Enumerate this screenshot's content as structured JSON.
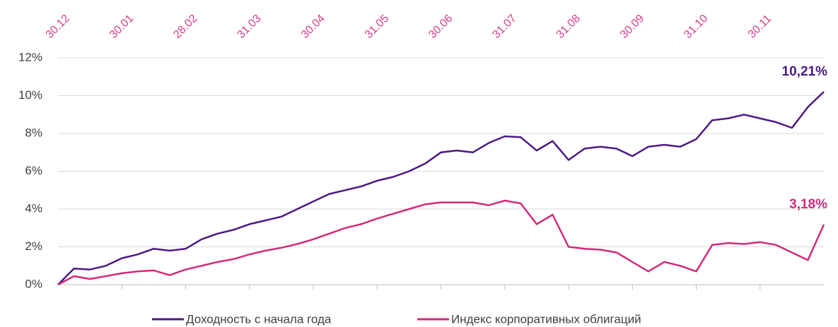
{
  "chart_data": {
    "type": "line",
    "categories": [
      "30.12",
      null,
      null,
      null,
      "30.01",
      null,
      null,
      null,
      "28.02",
      null,
      null,
      null,
      "31.03",
      null,
      null,
      null,
      "30.04",
      null,
      null,
      null,
      "31.05",
      null,
      null,
      null,
      "30.06",
      null,
      null,
      null,
      "31.07",
      null,
      null,
      null,
      "31.08",
      null,
      null,
      null,
      "30.09",
      null,
      null,
      null,
      "31.10",
      null,
      null,
      null,
      "30.11",
      null,
      null,
      null,
      null
    ],
    "series": [
      {
        "name": "Доходность с начала года",
        "color": "#4b1a84",
        "values": [
          0,
          0.85,
          0.8,
          1.0,
          1.4,
          1.6,
          1.9,
          1.8,
          1.9,
          2.4,
          2.7,
          2.9,
          3.2,
          3.4,
          3.6,
          4.0,
          4.4,
          4.8,
          5.0,
          5.2,
          5.5,
          5.7,
          6.0,
          6.4,
          7.0,
          7.1,
          7.0,
          7.5,
          7.85,
          7.8,
          7.1,
          7.6,
          6.6,
          7.2,
          7.3,
          7.2,
          6.8,
          7.3,
          7.4,
          7.3,
          7.7,
          8.7,
          8.8,
          9.0,
          8.8,
          8.6,
          8.3,
          9.4,
          10.21
        ],
        "value_labels": [
          null,
          null,
          null,
          null,
          null,
          null,
          null,
          null,
          null,
          null,
          null,
          null,
          null,
          null,
          null,
          null,
          null,
          null,
          null,
          null,
          null,
          null,
          null,
          null,
          null,
          null,
          null,
          null,
          null,
          null,
          null,
          null,
          null,
          null,
          null,
          null,
          null,
          null,
          null,
          null,
          null,
          null,
          null,
          null,
          null,
          null,
          null,
          null,
          "10,21%"
        ]
      },
      {
        "name": "Индекс корпоративных облигаций",
        "color": "#d12b7c",
        "values": [
          0,
          0.45,
          0.3,
          0.45,
          0.6,
          0.7,
          0.75,
          0.5,
          0.8,
          1.0,
          1.2,
          1.35,
          1.6,
          1.8,
          1.95,
          2.15,
          2.4,
          2.7,
          3.0,
          3.2,
          3.5,
          3.75,
          4.0,
          4.25,
          4.35,
          4.35,
          4.35,
          4.2,
          4.45,
          4.3,
          3.2,
          3.7,
          2.0,
          1.9,
          1.85,
          1.7,
          1.2,
          0.7,
          1.2,
          1.0,
          0.7,
          2.1,
          2.2,
          2.15,
          2.25,
          2.1,
          1.7,
          1.3,
          3.18
        ],
        "value_labels": [
          null,
          null,
          null,
          null,
          null,
          null,
          null,
          null,
          null,
          null,
          null,
          null,
          null,
          null,
          null,
          null,
          null,
          null,
          null,
          null,
          null,
          null,
          null,
          null,
          null,
          null,
          null,
          null,
          null,
          null,
          null,
          null,
          null,
          null,
          null,
          null,
          null,
          null,
          null,
          null,
          null,
          null,
          null,
          null,
          null,
          null,
          null,
          null,
          "3,18%"
        ]
      }
    ],
    "ylim": [
      0,
      12
    ],
    "yticks": [
      {
        "value": 0,
        "label": "0%"
      },
      {
        "value": 2,
        "label": "2%"
      },
      {
        "value": 4,
        "label": "4%"
      },
      {
        "value": 6,
        "label": "6%"
      },
      {
        "value": 8,
        "label": "8%"
      },
      {
        "value": 10,
        "label": "10%"
      },
      {
        "value": 12,
        "label": "12%"
      }
    ],
    "grid": true,
    "legend": "bottom"
  }
}
